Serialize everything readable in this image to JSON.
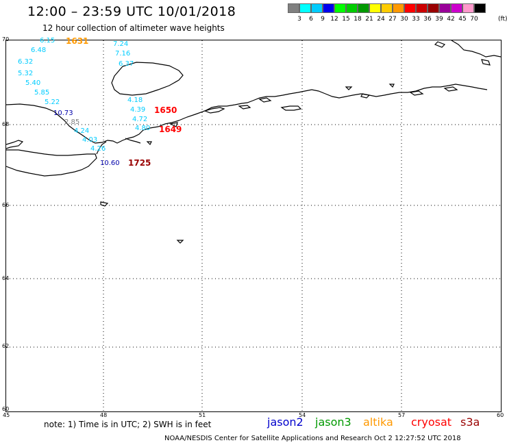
{
  "header": {
    "title": "12:00 – 23:59 UTC 10/01/2018",
    "subtitle": "12 hour collection of altimeter wave heights"
  },
  "scale": {
    "labels": [
      "3",
      "6",
      "9",
      "12",
      "15",
      "18",
      "21",
      "24",
      "27",
      "30",
      "33",
      "36",
      "39",
      "42",
      "45",
      "70"
    ],
    "units": "(ft)",
    "colors": [
      "#808080",
      "#00ffff",
      "#00ccff",
      "#0000ee",
      "#00ff00",
      "#00cc00",
      "#009900",
      "#ffff00",
      "#ffcc00",
      "#ff9900",
      "#ff0000",
      "#cc0000",
      "#990000",
      "#990099",
      "#cc00cc",
      "#ff99cc",
      "#000000"
    ]
  },
  "axes": {
    "lon_ticks": [
      "45",
      "48",
      "51",
      "54",
      "57",
      "60"
    ],
    "lat_ticks": [
      "70",
      "68",
      "66",
      "64",
      "62",
      "60"
    ],
    "lon_range": [
      45,
      60
    ],
    "lat_range": [
      60,
      70
    ]
  },
  "wave_heights": [
    {
      "value": "6.15",
      "color": "#00ccff"
    },
    {
      "value": "6.48",
      "color": "#00ccff"
    },
    {
      "value": "6.32",
      "color": "#00ccff"
    },
    {
      "value": "5.32",
      "color": "#00ccff"
    },
    {
      "value": "5.40",
      "color": "#00ccff"
    },
    {
      "value": "5.85",
      "color": "#00ccff"
    },
    {
      "value": "5.22",
      "color": "#00ccff"
    },
    {
      "value": "10.73",
      "color": "#0000aa"
    },
    {
      "value": "2.85",
      "color": "#808080"
    },
    {
      "value": "4.24",
      "color": "#00ccff"
    },
    {
      "value": "4.03",
      "color": "#00ccff"
    },
    {
      "value": "4.26",
      "color": "#00ccff"
    },
    {
      "value": "10.60",
      "color": "#0000aa"
    },
    {
      "value": "7.24",
      "color": "#00ccff"
    },
    {
      "value": "7.16",
      "color": "#00ccff"
    },
    {
      "value": "6.37",
      "color": "#00ccff"
    },
    {
      "value": "4.18",
      "color": "#00ccff"
    },
    {
      "value": "4.39",
      "color": "#00ccff"
    },
    {
      "value": "4.72",
      "color": "#00ccff"
    },
    {
      "value": "4.80",
      "color": "#00ccff"
    }
  ],
  "pass_ids": [
    {
      "value": "1631",
      "color": "#ff9900"
    },
    {
      "value": "1650",
      "color": "#ff0000"
    },
    {
      "value": "1649",
      "color": "#ff0000"
    },
    {
      "value": "1725",
      "color": "#990000"
    }
  ],
  "footer": {
    "note": "note:  1) Time is in UTC;  2) SWH is in feet",
    "satellites": [
      {
        "name": "jason2",
        "color": "#0000cc"
      },
      {
        "name": "jason3",
        "color": "#009900"
      },
      {
        "name": "altika",
        "color": "#ff9900"
      },
      {
        "name": "cryosat",
        "color": "#ff0000"
      },
      {
        "name": "s3a",
        "color": "#990000"
      }
    ],
    "credit": "NOAA/NESDIS Center for Satellite Applications and Research     Oct  2 12:27:52 UTC 2018"
  }
}
